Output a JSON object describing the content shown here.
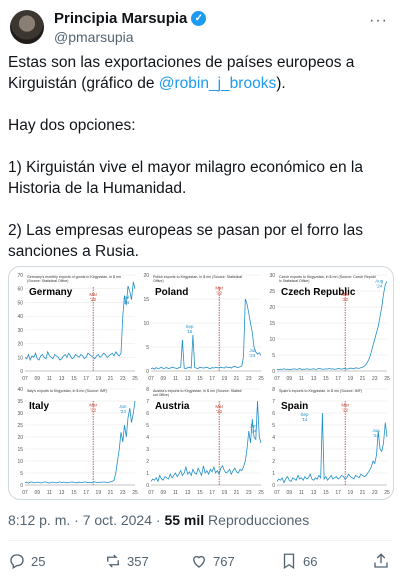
{
  "author": {
    "display_name": "Principia Marsupia",
    "handle": "@pmarsupia",
    "verified_icon": "verified-badge-icon"
  },
  "tweet": {
    "line1_pre": "Estas son las exportaciones de países europeos a Kirguistán (gráfico de ",
    "mention": "@robin_j_brooks",
    "line1_post": ").",
    "p2": "Hay dos opciones:",
    "p3": "1) Kirguistán vive el mayor milagro económico en la Historia de la Humanidad.",
    "p4": "2) Las empresas europeas se pasan por el forro las sanciones a Rusia."
  },
  "meta": {
    "time": "8:12 p. m.",
    "sep": " · ",
    "date": "7 oct. 2024",
    "sep2": " · ",
    "views": "55 mil",
    "views_label": " Reproducciones"
  },
  "actions": {
    "replies": "25",
    "reposts": "357",
    "likes": "767",
    "bookmarks": "66"
  },
  "colors": {
    "accent": "#1d9bf0",
    "line": "#1f8fc8",
    "marker": "#c0392b"
  },
  "chart_data": [
    {
      "type": "line",
      "title": "Germany",
      "subtitle": "Germany's monthly exports of goods to Kirgyzstan, in $ mn (Source: Statistical Office)",
      "x_ticks": [
        "07",
        "09",
        "11",
        "13",
        "15",
        "17",
        "19",
        "21",
        "23",
        "25"
      ],
      "y_ticks": [
        0,
        10,
        20,
        30,
        40,
        50,
        60,
        70
      ],
      "ylim": [
        0,
        70
      ],
      "annotations": [
        {
          "text": "Mar '22"
        },
        {
          "text": "Jul '24"
        }
      ],
      "values": [
        10,
        9,
        12,
        8,
        11,
        10,
        13,
        9,
        8,
        11,
        12,
        10,
        9,
        14,
        11,
        10,
        9,
        12,
        11,
        10,
        8,
        9,
        11,
        12,
        10,
        13,
        11,
        9,
        10,
        12,
        11,
        10,
        12,
        11,
        9,
        10,
        13,
        12,
        11,
        10,
        9,
        11,
        12,
        10,
        11,
        13,
        12,
        10,
        11,
        12,
        13,
        11,
        14,
        12,
        11,
        13,
        40,
        55,
        48,
        62,
        58,
        52,
        65,
        60
      ]
    },
    {
      "type": "line",
      "title": "Poland",
      "subtitle": "Polish exports to Kirgyzstan, in $ mn (Source: Statistical Office)",
      "x_ticks": [
        "07",
        "09",
        "11",
        "13",
        "15",
        "17",
        "19",
        "21",
        "23",
        "25"
      ],
      "y_ticks": [
        0,
        5,
        10,
        15,
        20
      ],
      "ylim": [
        0,
        20
      ],
      "annotations": [
        {
          "text": "Sep '16"
        },
        {
          "text": "Mar '22"
        },
        {
          "text": "Jul '24"
        }
      ],
      "values": [
        0.5,
        0.6,
        0.4,
        0.7,
        0.5,
        0.6,
        0.8,
        0.5,
        0.6,
        0.7,
        0.5,
        0.6,
        0.8,
        0.7,
        0.6,
        0.5,
        0.7,
        0.8,
        6.5,
        0.6,
        0.5,
        0.7,
        0.8,
        0.6,
        7.5,
        0.7,
        0.6,
        0.5,
        0.8,
        0.7,
        0.6,
        0.7,
        0.8,
        0.6,
        0.5,
        0.7,
        0.6,
        0.8,
        0.7,
        0.6,
        0.8,
        0.7,
        0.6,
        0.9,
        0.7,
        0.8,
        0.6,
        0.9,
        1,
        0.8,
        0.7,
        0.9,
        1,
        3,
        15,
        14,
        12,
        10,
        8,
        5,
        4,
        3.5,
        3.8,
        3.2
      ]
    },
    {
      "type": "line",
      "title": "Czech Republic",
      "subtitle": "Czech exports to Kirgyzstan, in $ mn (Source: Czech Republic Statistical Office)",
      "x_ticks": [
        "07",
        "09",
        "11",
        "13",
        "15",
        "17",
        "19",
        "21",
        "23",
        "25"
      ],
      "y_ticks": [
        0,
        5,
        10,
        15,
        20,
        25,
        30
      ],
      "ylim": [
        0,
        30
      ],
      "annotations": [
        {
          "text": "Mar '22"
        },
        {
          "text": "Aug '24"
        }
      ],
      "values": [
        0.5,
        0.4,
        0.6,
        0.5,
        0.7,
        0.5,
        0.6,
        0.4,
        0.5,
        0.6,
        0.7,
        0.5,
        0.6,
        0.8,
        0.5,
        0.6,
        0.5,
        0.7,
        0.6,
        0.5,
        0.6,
        0.7,
        0.5,
        0.6,
        0.8,
        0.7,
        0.6,
        0.5,
        0.7,
        0.6,
        0.8,
        0.6,
        0.7,
        0.5,
        0.6,
        0.8,
        0.7,
        0.6,
        0.7,
        0.8,
        0.6,
        0.7,
        0.9,
        0.8,
        0.7,
        1,
        0.9,
        0.8,
        1,
        1.2,
        1.5,
        2,
        3,
        4,
        6,
        8,
        10,
        12,
        14,
        17,
        20,
        24,
        27,
        28
      ]
    },
    {
      "type": "line",
      "title": "Italy",
      "subtitle": "Italy's exports to Kirgyzstan, in $ mn (Source: IMF)",
      "x_ticks": [
        "07",
        "09",
        "11",
        "13",
        "15",
        "17",
        "19",
        "21",
        "23",
        "25"
      ],
      "y_ticks": [
        0,
        5,
        10,
        15,
        20,
        25,
        30,
        35,
        40
      ],
      "ylim": [
        0,
        40
      ],
      "annotations": [
        {
          "text": "Mar '22"
        },
        {
          "text": "Jun '24"
        }
      ],
      "values": [
        1,
        1.2,
        0.8,
        1.1,
        1.3,
        0.9,
        1,
        1.2,
        1.1,
        0.9,
        1,
        1.3,
        1.2,
        1,
        0.8,
        1.1,
        1.2,
        1,
        0.9,
        1.1,
        1.3,
        1,
        1.2,
        1.1,
        0.9,
        1,
        1.2,
        1.3,
        1.1,
        1,
        0.9,
        1.2,
        1.1,
        1,
        1.3,
        1.2,
        1,
        1.1,
        0.9,
        1.2,
        1.3,
        1.1,
        1,
        1.2,
        1.1,
        1.3,
        1.2,
        1,
        1.1,
        1.4,
        1.5,
        2,
        5,
        10,
        15,
        22,
        18,
        25,
        20,
        28,
        32,
        26,
        30,
        35
      ]
    },
    {
      "type": "line",
      "title": "Austria",
      "subtitle": "Austria's exports to Kirgyzstan, in $ mn (Source: Statistical Office)",
      "x_ticks": [
        "07",
        "09",
        "11",
        "13",
        "15",
        "17",
        "19",
        "21",
        "23",
        "25"
      ],
      "y_ticks": [
        0,
        1,
        2,
        3,
        4,
        5,
        6,
        7,
        8
      ],
      "ylim": [
        0,
        8
      ],
      "annotations": [
        {
          "text": "Mar '22"
        },
        {
          "text": "Jun '24"
        }
      ],
      "values": [
        0.3,
        0.5,
        0.4,
        0.6,
        0.3,
        0.8,
        0.5,
        0.4,
        0.7,
        0.6,
        0.5,
        0.9,
        0.6,
        0.8,
        1,
        0.7,
        0.9,
        1.2,
        0.8,
        1,
        1.5,
        0.9,
        1.1,
        0.8,
        1.3,
        1,
        0.9,
        1.4,
        1.1,
        0.8,
        1.6,
        1,
        1.2,
        0.9,
        1.3,
        1.1,
        1.5,
        1,
        1.2,
        0.9,
        1.4,
        1.6,
        1.2,
        1,
        1.1,
        1.3,
        0.9,
        1.2,
        1.4,
        1.1,
        1,
        1.3,
        1.2,
        1.5,
        2,
        3,
        4.5,
        3.5,
        5.5,
        4,
        3.8,
        7,
        4,
        3.5
      ]
    },
    {
      "type": "line",
      "title": "Spain",
      "subtitle": "Spain's exports to Kirgyzstan, in $ mn (Source: IMF)",
      "x_ticks": [
        "07",
        "09",
        "11",
        "13",
        "15",
        "17",
        "19",
        "21",
        "23",
        "25"
      ],
      "y_ticks": [
        0,
        1,
        2,
        3,
        4,
        5,
        6,
        7,
        8
      ],
      "ylim": [
        0,
        8
      ],
      "annotations": [
        {
          "text": "Sep '14"
        },
        {
          "text": "Mar '22"
        },
        {
          "text": "Jun '24"
        }
      ],
      "values": [
        0.3,
        0.5,
        0.4,
        0.6,
        0.2,
        0.5,
        0.7,
        0.4,
        0.3,
        0.6,
        0.5,
        0.4,
        0.8,
        0.5,
        0.6,
        0.4,
        0.7,
        0.5,
        0.6,
        0.9,
        0.5,
        0.4,
        0.6,
        0.5,
        0.8,
        0.6,
        6,
        0.5,
        0.7,
        0.4,
        0.6,
        0.8,
        0.5,
        0.6,
        0.7,
        0.5,
        0.6,
        0.8,
        0.7,
        0.5,
        0.6,
        0.9,
        0.7,
        0.6,
        0.5,
        0.8,
        0.7,
        0.6,
        0.9,
        0.8,
        0.7,
        0.8,
        1,
        1.2,
        1.5,
        2,
        1.8,
        2.5,
        4.5,
        3,
        2.8,
        3.5,
        5.2,
        4
      ]
    }
  ]
}
